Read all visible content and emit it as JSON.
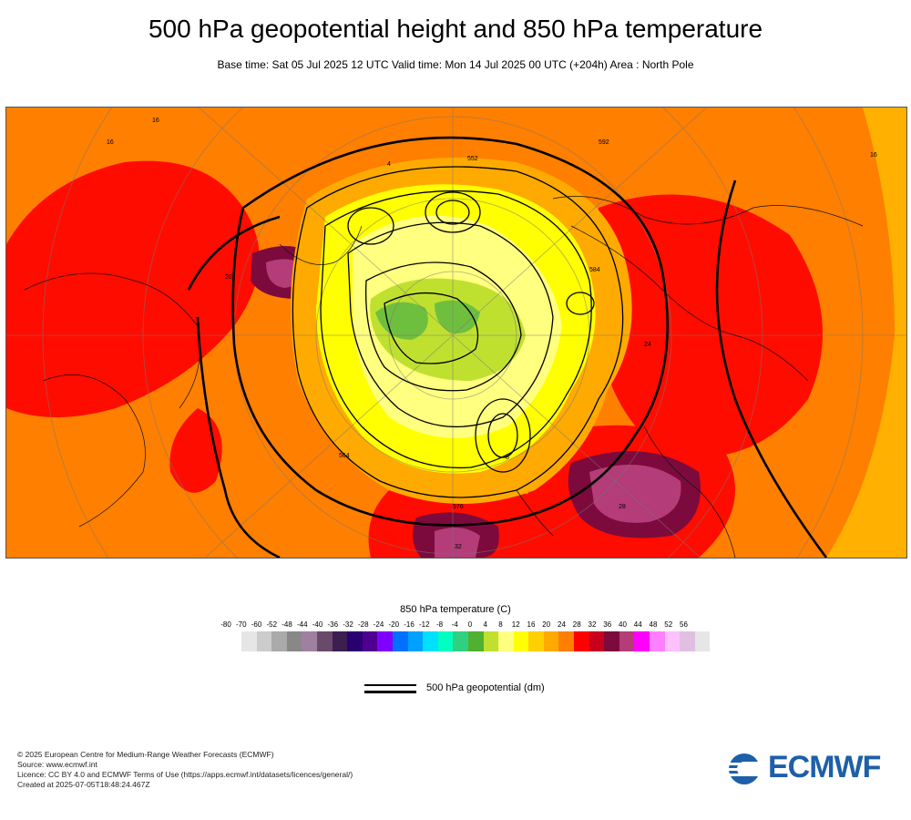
{
  "header": {
    "title": "500 hPa geopotential height and 850 hPa temperature",
    "subtitle": "Base time: Sat 05 Jul 2025 12 UTC Valid time: Mon 14 Jul 2025 00 UTC (+204h) Area : North Pole"
  },
  "map": {
    "contour_labels": [
      "552",
      "564",
      "576",
      "584",
      "592",
      "16",
      "20",
      "24",
      "28",
      "32",
      "4",
      "8"
    ],
    "colors": {
      "background": "#ff7f00",
      "warm_red": "#ff0000",
      "dark_red": "#c8001e",
      "maroon": "#7d0a3c",
      "plum": "#b43c78",
      "orange_yellow": "#ffaa00",
      "yellow": "#ffff00",
      "pale_yellow": "#ffff80",
      "lime": "#c0e030",
      "green": "#6fbf3f",
      "ocean_mask": "#ffb000"
    }
  },
  "legend": {
    "title": "850 hPa temperature (C)",
    "ticks": [
      "-80",
      "-70",
      "-60",
      "-52",
      "-48",
      "-44",
      "-40",
      "-36",
      "-32",
      "-28",
      "-24",
      "-20",
      "-16",
      "-12",
      "-8",
      "-4",
      "0",
      "4",
      "8",
      "12",
      "16",
      "20",
      "24",
      "28",
      "32",
      "36",
      "40",
      "44",
      "48",
      "52",
      "56"
    ],
    "colors": [
      "#e6e6e6",
      "#cccccc",
      "#aaaaaa",
      "#888888",
      "#a080a0",
      "#6a4a6a",
      "#3c1e50",
      "#280070",
      "#500090",
      "#8000ff",
      "#0070ff",
      "#00a0ff",
      "#00e0ff",
      "#00ffc0",
      "#30d080",
      "#50b030",
      "#c0e030",
      "#ffff80",
      "#ffff00",
      "#ffd000",
      "#ffaa00",
      "#ff7f00",
      "#ff0000",
      "#c8001e",
      "#7d0a3c",
      "#b43c78",
      "#ff00ff",
      "#ff80ff",
      "#ffc0ff",
      "#e0c0e0",
      "#e6e6e6"
    ],
    "geopotential_label": "500 hPa geopotential (dm)"
  },
  "footer": {
    "copyright": "© 2025 European Centre for Medium-Range Weather Forecasts (ECMWF)",
    "source": "Source: www.ecmwf.int",
    "licence": "Licence: CC BY 4.0 and ECMWF Terms of Use (https://apps.ecmwf.int/datasets/licences/general/)",
    "created": "Created at 2025-07-05T18:48:24.467Z",
    "logo_text": "ECMWF"
  }
}
